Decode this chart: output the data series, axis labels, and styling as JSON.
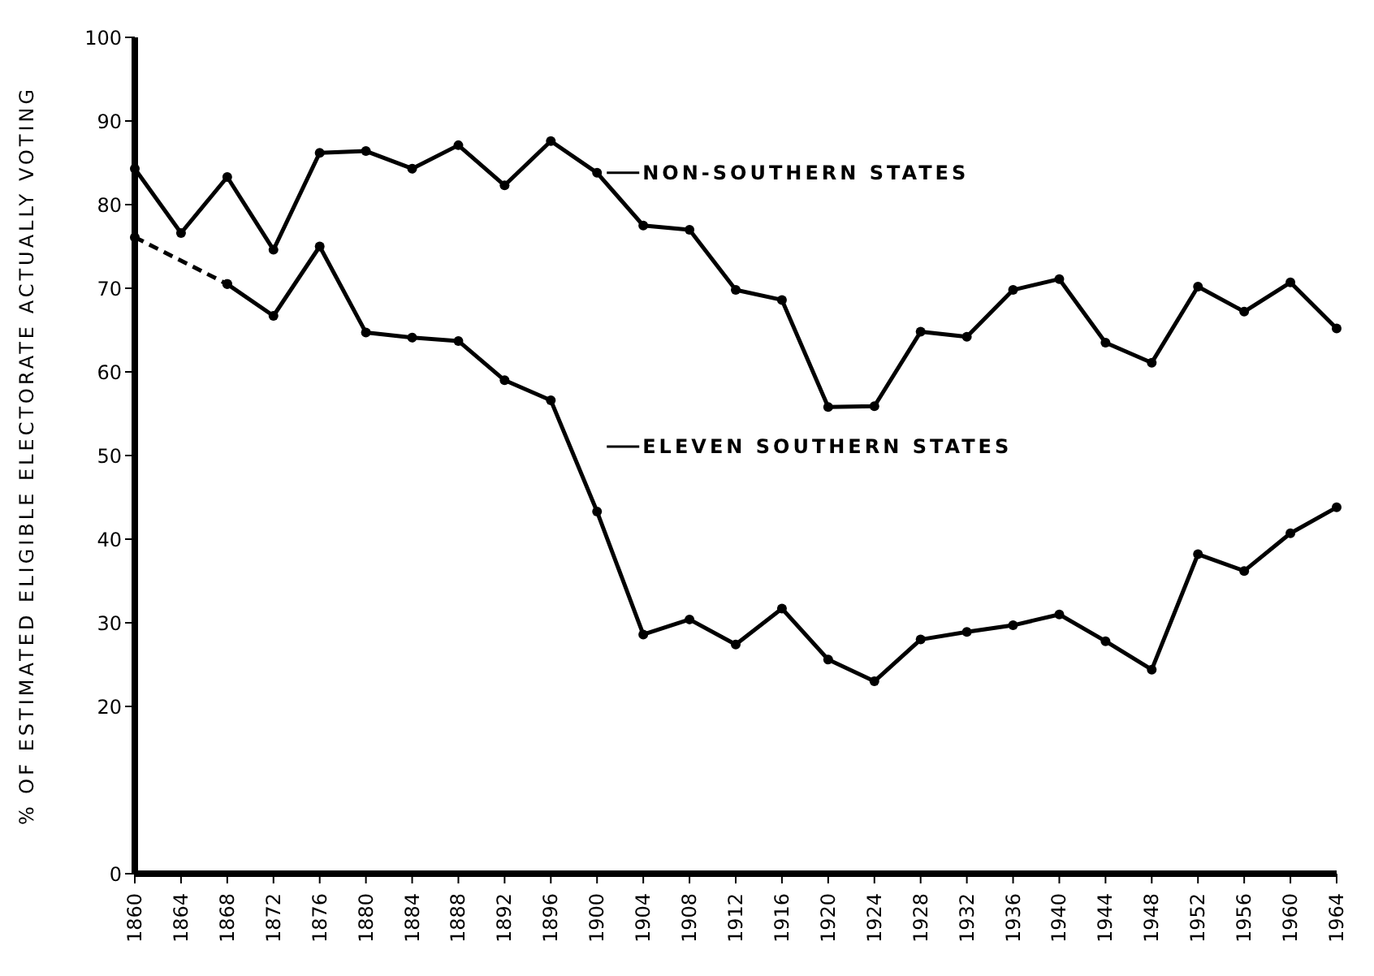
{
  "chart_data": {
    "type": "line",
    "ylabel": "% OF ESTIMATED ELIGIBLE ELECTORATE ACTUALLY VOTING",
    "categories": [
      "1860",
      "1864",
      "1868",
      "1872",
      "1876",
      "1880",
      "1884",
      "1888",
      "1892",
      "1896",
      "1900",
      "1904",
      "1908",
      "1912",
      "1916",
      "1920",
      "1924",
      "1928",
      "1932",
      "1936",
      "1940",
      "1944",
      "1948",
      "1952",
      "1956",
      "1960",
      "1964"
    ],
    "series": [
      {
        "name": "NON-SOUTHERN STATES",
        "color": "#000000",
        "values": [
          84.3,
          76.6,
          83.3,
          74.6,
          86.2,
          86.4,
          84.3,
          87.1,
          82.3,
          87.6,
          83.8,
          77.5,
          77.0,
          69.8,
          68.6,
          55.8,
          55.9,
          64.8,
          64.2,
          69.8,
          71.1,
          63.5,
          61.1,
          70.2,
          67.2,
          70.7,
          65.2
        ]
      },
      {
        "name": "ELEVEN SOUTHERN STATES",
        "color": "#000000",
        "values": [
          null,
          null,
          70.5,
          66.7,
          75.0,
          64.7,
          64.1,
          63.7,
          59.0,
          56.6,
          43.3,
          28.6,
          30.4,
          27.4,
          31.7,
          25.6,
          23.0,
          28.0,
          28.9,
          29.7,
          31.0,
          27.8,
          24.4,
          38.2,
          36.2,
          40.7,
          43.8
        ]
      },
      {
        "color": "#000000",
        "line_style": "dashed",
        "values": [
          76.1,
          null,
          70.5,
          null,
          null,
          null,
          null,
          null,
          null,
          null,
          null,
          null,
          null,
          null,
          null,
          null,
          null,
          null,
          null,
          null,
          null,
          null,
          null,
          null,
          null,
          null,
          null
        ]
      }
    ],
    "ylim": [
      0,
      100
    ],
    "yticks": [
      0,
      20,
      30,
      40,
      50,
      60,
      70,
      80,
      90,
      100
    ],
    "grid": false,
    "legend": "top right",
    "marker": "circle",
    "line_style": "solid"
  }
}
